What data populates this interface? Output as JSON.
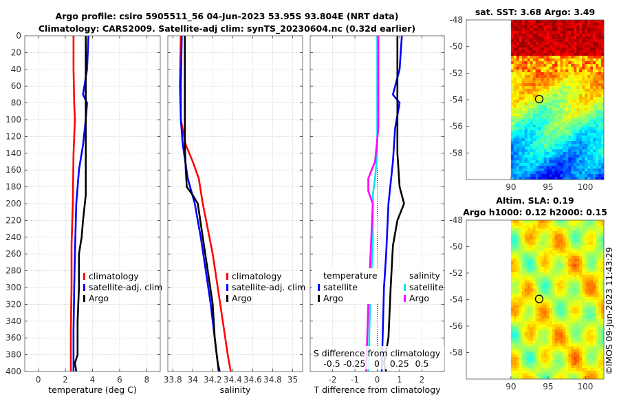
{
  "title_line1": "Argo profile: csiro 5905511_56 04-Jun-2023 53.95S 93.804E (NRT data)",
  "title_line2": "Climatology: CARS2009. Satellite-adj clim: synTS_20230604.nc (0.32d earlier)",
  "stamp": "©IMOS 09-Jun-2023 11:43:29",
  "colors": {
    "climatology": "#ff0000",
    "satellite": "#0000ff",
    "argo": "#000000",
    "sat_s": "#00e5ee",
    "argo_s": "#ff00ff",
    "grid": "#cccccc"
  },
  "chart_data": [
    {
      "id": "temperature",
      "type": "line",
      "xlabel": "temperature (deg C)",
      "xlim": [
        -1,
        9
      ],
      "xticks": [
        0,
        2,
        4,
        6,
        8
      ],
      "xtick_labels": [
        "0",
        "2",
        "4",
        "6",
        "8"
      ],
      "ylim": [
        0,
        400
      ],
      "yticks": [
        0,
        20,
        40,
        60,
        80,
        100,
        120,
        140,
        160,
        180,
        200,
        220,
        240,
        260,
        280,
        300,
        320,
        340,
        360,
        380,
        400
      ],
      "ytick_labels": [
        "0",
        "20",
        "40",
        "60",
        "80",
        "100",
        "120",
        "140",
        "160",
        "180",
        "200",
        "220",
        "240",
        "260",
        "280",
        "300",
        "320",
        "340",
        "360",
        "380",
        "400"
      ],
      "legend": [
        "climatology",
        "satellite-adj. clim",
        "Argo"
      ],
      "series": [
        {
          "name": "climatology",
          "color": "#ff0000",
          "points": [
            [
              2.6,
              0
            ],
            [
              2.6,
              40
            ],
            [
              2.65,
              80
            ],
            [
              2.7,
              100
            ],
            [
              2.6,
              140
            ],
            [
              2.55,
              200
            ],
            [
              2.45,
              250
            ],
            [
              2.45,
              300
            ],
            [
              2.4,
              350
            ],
            [
              2.4,
              400
            ]
          ]
        },
        {
          "name": "satellite-adj. clim",
          "color": "#0000ff",
          "points": [
            [
              3.7,
              0
            ],
            [
              3.6,
              40
            ],
            [
              3.3,
              70
            ],
            [
              3.6,
              80
            ],
            [
              3.5,
              100
            ],
            [
              3.3,
              130
            ],
            [
              3.0,
              160
            ],
            [
              2.8,
              200
            ],
            [
              2.7,
              260
            ],
            [
              2.65,
              300
            ],
            [
              2.6,
              350
            ],
            [
              2.6,
              400
            ]
          ]
        },
        {
          "name": "Argo",
          "color": "#000000",
          "points": [
            [
              3.5,
              0
            ],
            [
              3.5,
              100
            ],
            [
              3.5,
              150
            ],
            [
              3.5,
              190
            ],
            [
              3.3,
              220
            ],
            [
              3.2,
              240
            ],
            [
              3.0,
              260
            ],
            [
              3.0,
              300
            ],
            [
              2.9,
              340
            ],
            [
              2.9,
              380
            ],
            [
              2.7,
              390
            ],
            [
              2.8,
              400
            ]
          ]
        }
      ]
    },
    {
      "id": "salinity",
      "type": "line",
      "xlabel": "salinity",
      "xlim": [
        33.75,
        35.1
      ],
      "xticks": [
        33.8,
        34,
        34.2,
        34.4,
        34.6,
        34.8,
        35
      ],
      "xtick_labels": [
        "33.8",
        "34",
        "34.2",
        "34.4",
        "34.6",
        "34.8",
        "35"
      ],
      "ylim": [
        0,
        400
      ],
      "legend": [
        "climatology",
        "satellite-adj. clim",
        "Argo"
      ],
      "series": [
        {
          "name": "climatology",
          "color": "#ff0000",
          "points": [
            [
              33.88,
              0
            ],
            [
              33.87,
              60
            ],
            [
              33.88,
              100
            ],
            [
              33.93,
              130
            ],
            [
              34.0,
              150
            ],
            [
              34.06,
              170
            ],
            [
              34.1,
              200
            ],
            [
              34.15,
              230
            ],
            [
              34.2,
              260
            ],
            [
              34.25,
              300
            ],
            [
              34.3,
              340
            ],
            [
              34.35,
              380
            ],
            [
              34.38,
              400
            ]
          ]
        },
        {
          "name": "satellite-adj. clim",
          "color": "#0000ff",
          "points": [
            [
              33.89,
              0
            ],
            [
              33.88,
              60
            ],
            [
              33.88,
              100
            ],
            [
              33.9,
              130
            ],
            [
              33.95,
              170
            ],
            [
              34.02,
              200
            ],
            [
              34.08,
              240
            ],
            [
              34.13,
              280
            ],
            [
              34.18,
              320
            ],
            [
              34.22,
              360
            ],
            [
              34.26,
              400
            ]
          ]
        },
        {
          "name": "Argo",
          "color": "#000000",
          "points": [
            [
              33.92,
              0
            ],
            [
              33.92,
              80
            ],
            [
              33.92,
              130
            ],
            [
              33.93,
              160
            ],
            [
              33.94,
              180
            ],
            [
              34.0,
              190
            ],
            [
              34.05,
              200
            ],
            [
              34.1,
              240
            ],
            [
              34.15,
              280
            ],
            [
              34.2,
              320
            ],
            [
              34.22,
              360
            ],
            [
              34.25,
              390
            ],
            [
              34.27,
              400
            ]
          ]
        }
      ]
    },
    {
      "id": "difference",
      "type": "line",
      "xlabel": "T difference from climatology",
      "xlim": [
        -3,
        3
      ],
      "xticks": [
        -2,
        -1,
        0,
        1,
        2
      ],
      "xtick_labels": [
        "-2",
        "-1",
        "0",
        "1",
        "2"
      ],
      "top_axis_label": "S difference from climatology",
      "top_ticks": [
        -0.5,
        -0.25,
        0,
        0.25,
        0.5
      ],
      "top_tick_labels": [
        "-0.5",
        "-0.25",
        "0",
        "0.25",
        "0.5"
      ],
      "ylim": [
        0,
        400
      ],
      "legend_left_title": "temperature",
      "legend_right_title": "salinity",
      "legend_left": [
        "satellite",
        "Argo"
      ],
      "legend_right": [
        "satellite",
        "Argo"
      ],
      "series": [
        {
          "name": "satellite T",
          "color": "#0000ff",
          "points": [
            [
              1.1,
              0
            ],
            [
              1.0,
              40
            ],
            [
              0.7,
              70
            ],
            [
              1.0,
              80
            ],
            [
              0.8,
              110
            ],
            [
              0.7,
              150
            ],
            [
              0.5,
              200
            ],
            [
              0.4,
              260
            ],
            [
              0.3,
              300
            ],
            [
              0.2,
              400
            ]
          ]
        },
        {
          "name": "Argo T",
          "color": "#000000",
          "points": [
            [
              0.9,
              0
            ],
            [
              0.9,
              100
            ],
            [
              0.9,
              140
            ],
            [
              1.0,
              180
            ],
            [
              1.2,
              200
            ],
            [
              0.9,
              220
            ],
            [
              0.7,
              250
            ],
            [
              0.6,
              300
            ],
            [
              0.5,
              360
            ],
            [
              0.3,
              390
            ],
            [
              0.4,
              400
            ]
          ]
        },
        {
          "name": "satellite S",
          "color": "#00e5ee",
          "points": [
            [
              0.0,
              0
            ],
            [
              0.0,
              100
            ],
            [
              0.0,
              140
            ],
            [
              -0.1,
              170
            ],
            [
              -0.2,
              190
            ],
            [
              -0.2,
              250
            ],
            [
              -0.3,
              300
            ],
            [
              -0.4,
              400
            ]
          ]
        },
        {
          "name": "Argo S",
          "color": "#ff00ff",
          "points": [
            [
              0.05,
              0
            ],
            [
              0.05,
              110
            ],
            [
              -0.1,
              150
            ],
            [
              -0.4,
              170
            ],
            [
              -0.4,
              185
            ],
            [
              -0.2,
              200
            ],
            [
              -0.3,
              260
            ],
            [
              -0.4,
              320
            ],
            [
              -0.5,
              400
            ]
          ]
        }
      ]
    },
    {
      "id": "sst_map",
      "type": "heatmap",
      "title": "sat. SST: 3.68 Argo: 3.49",
      "xlim": [
        84,
        102.5
      ],
      "ylim": [
        -60,
        -48
      ],
      "xticks": [
        90,
        95,
        100
      ],
      "xtick_labels": [
        "90",
        "95",
        "100"
      ],
      "yticks": [
        -48,
        -50,
        -52,
        -54,
        -56,
        -58
      ],
      "ytick_labels": [
        "-48",
        "-50",
        "-52",
        "-54",
        "-56",
        "-58"
      ],
      "data_lon_min": 90,
      "marker": {
        "lon": 93.8,
        "lat": -53.95
      }
    },
    {
      "id": "sla_map",
      "type": "heatmap",
      "title_line1": "Altim. SLA: 0.19",
      "title_line2": "Argo h1000: 0.12 h2000: 0.15",
      "xlim": [
        84,
        102.5
      ],
      "ylim": [
        -60,
        -48
      ],
      "xticks": [
        90,
        95,
        100
      ],
      "xtick_labels": [
        "90",
        "95",
        "100"
      ],
      "yticks": [
        -48,
        -50,
        -52,
        -54,
        -56,
        -58
      ],
      "ytick_labels": [
        "-48",
        "-50",
        "-52",
        "-54",
        "-56",
        "-58"
      ],
      "data_lon_min": 90,
      "marker": {
        "lon": 93.8,
        "lat": -53.95
      }
    }
  ]
}
